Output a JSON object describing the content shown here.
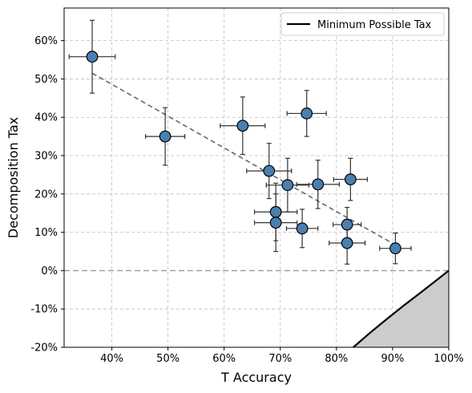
{
  "chart_data": {
    "type": "scatter",
    "xlabel": "T Accuracy",
    "ylabel": "Decomposition Tax",
    "xlim": [
      31.5,
      100
    ],
    "ylim": [
      -20,
      68.5
    ],
    "xticks": [
      40,
      50,
      60,
      70,
      80,
      90,
      100
    ],
    "yticks": [
      -20,
      -10,
      0,
      10,
      20,
      30,
      40,
      50,
      60
    ],
    "xtick_labels": [
      "40%",
      "50%",
      "60%",
      "70%",
      "80%",
      "90%",
      "100%"
    ],
    "ytick_labels": [
      "-20%",
      "-10%",
      "0%",
      "10%",
      "20%",
      "30%",
      "40%",
      "50%",
      "60%"
    ],
    "grid": true,
    "legend": {
      "placement": "top-right",
      "entries": [
        "Minimum Possible Tax"
      ]
    },
    "points": [
      {
        "x": 36.5,
        "y": 55.8,
        "xerr": 4.1,
        "yerr": 9.5
      },
      {
        "x": 49.5,
        "y": 35.0,
        "xerr": 3.5,
        "yerr": 7.5
      },
      {
        "x": 63.3,
        "y": 37.8,
        "xerr": 4.0,
        "yerr": 7.5
      },
      {
        "x": 68.0,
        "y": 26.0,
        "xerr": 4.0,
        "yerr": 7.2
      },
      {
        "x": 71.3,
        "y": 22.3,
        "xerr": 3.8,
        "yerr": 7.0
      },
      {
        "x": 74.7,
        "y": 41.0,
        "xerr": 3.5,
        "yerr": 6.0
      },
      {
        "x": 76.7,
        "y": 22.5,
        "xerr": 3.8,
        "yerr": 6.3
      },
      {
        "x": 82.5,
        "y": 23.8,
        "xerr": 3.0,
        "yerr": 5.5
      },
      {
        "x": 69.2,
        "y": 15.3,
        "xerr": 3.8,
        "yerr": 7.5
      },
      {
        "x": 69.2,
        "y": 12.5,
        "xerr": 3.8,
        "yerr": 7.5
      },
      {
        "x": 73.9,
        "y": 11.0,
        "xerr": 2.8,
        "yerr": 5.0
      },
      {
        "x": 81.9,
        "y": 12.0,
        "xerr": 2.5,
        "yerr": 4.5
      },
      {
        "x": 81.9,
        "y": 7.2,
        "xerr": 3.2,
        "yerr": 5.5
      },
      {
        "x": 90.5,
        "y": 5.8,
        "xerr": 2.8,
        "yerr": 4.0
      }
    ],
    "trend_line": {
      "x": [
        36.5,
        90.5
      ],
      "y": [
        51.5,
        6.7
      ]
    },
    "reference_line_y": 0,
    "minimum_tax_curve": {
      "name": "Minimum Possible Tax",
      "x": [
        83.0,
        86.0,
        89.0,
        92.0,
        95.0,
        98.0,
        100.0
      ],
      "y": [
        -20.0,
        -16.2,
        -12.6,
        -9.1,
        -5.7,
        -2.3,
        0.0
      ]
    },
    "colors": {
      "marker_fill": "#4a7fb0",
      "marker_edge": "#000000",
      "errorbar": "#333333",
      "trend_line": "#666666",
      "reference_line": "#999999",
      "curve": "#000000",
      "shade": "#cccccc",
      "grid": "#bfbfbf"
    }
  }
}
